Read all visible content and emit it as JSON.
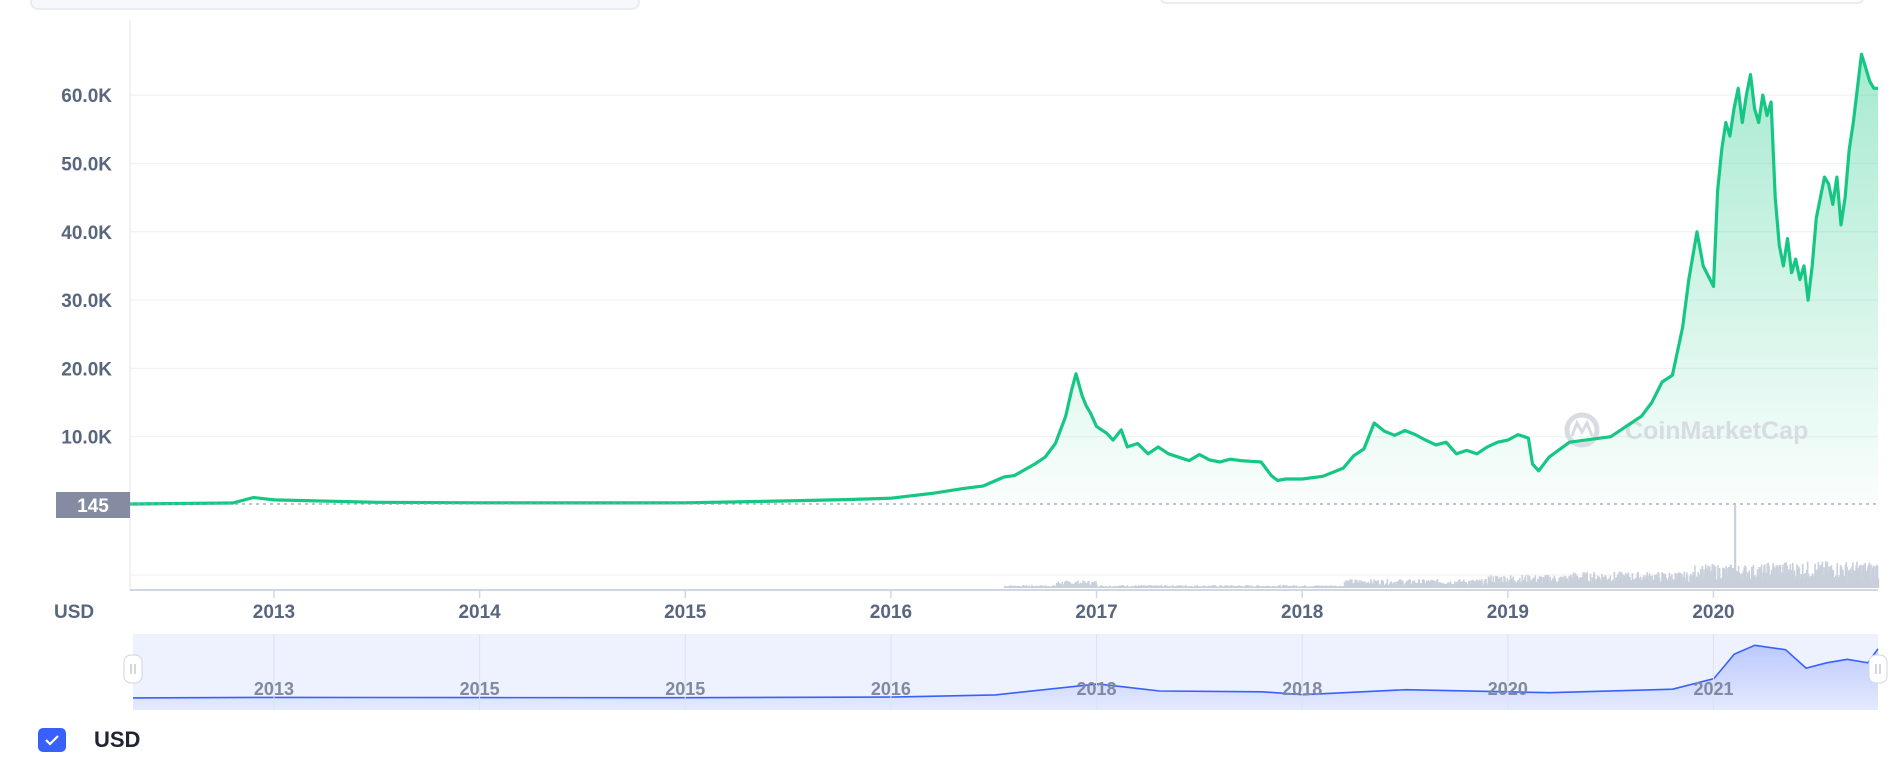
{
  "chart_data": {
    "type": "area",
    "currency_label": "USD",
    "watermark": "CoinMarketCap",
    "reference_value": 145,
    "reference_label": "145",
    "ylim": [
      0,
      71000
    ],
    "yticks": [
      {
        "value": 10000,
        "label": "10.0K"
      },
      {
        "value": 20000,
        "label": "20.0K"
      },
      {
        "value": 30000,
        "label": "30.0K"
      },
      {
        "value": 40000,
        "label": "40.0K"
      },
      {
        "value": 50000,
        "label": "50.0K"
      },
      {
        "value": 60000,
        "label": "60.0K"
      }
    ],
    "xlim": [
      2012.3,
      2020.8
    ],
    "xticks": [
      {
        "value": 2013,
        "label": "2013"
      },
      {
        "value": 2014,
        "label": "2014"
      },
      {
        "value": 2015,
        "label": "2015"
      },
      {
        "value": 2016,
        "label": "2016"
      },
      {
        "value": 2017,
        "label": "2017"
      },
      {
        "value": 2018,
        "label": "2018"
      },
      {
        "value": 2019,
        "label": "2019"
      },
      {
        "value": 2020,
        "label": "2020"
      }
    ],
    "grid": true,
    "line_color": "#16c784",
    "series": [
      {
        "x": [
          2012.3,
          2012.8,
          2012.9,
          2013.0,
          2013.5,
          2014.0,
          2014.5,
          2015.0,
          2015.5,
          2015.8,
          2016.0,
          2016.2,
          2016.35,
          2016.45,
          2016.55,
          2016.6,
          2016.7,
          2016.75,
          2016.8,
          2016.85,
          2016.88,
          2016.9,
          2016.93,
          2016.95,
          2016.97,
          2017.0,
          2017.05,
          2017.08,
          2017.12,
          2017.15,
          2017.2,
          2017.25,
          2017.3,
          2017.35,
          2017.4,
          2017.45,
          2017.5,
          2017.55,
          2017.6,
          2017.65,
          2017.7,
          2017.75,
          2017.8,
          2017.85,
          2017.88,
          2017.92,
          2018.0,
          2018.1,
          2018.2,
          2018.25,
          2018.3,
          2018.35,
          2018.4,
          2018.45,
          2018.5,
          2018.55,
          2018.6,
          2018.65,
          2018.7,
          2018.75,
          2018.8,
          2018.85,
          2018.9,
          2018.95,
          2019.0,
          2019.05,
          2019.1,
          2019.12,
          2019.15,
          2019.2,
          2019.3,
          2019.4,
          2019.5,
          2019.55,
          2019.6,
          2019.65,
          2019.7,
          2019.75,
          2019.8,
          2019.85,
          2019.88,
          2019.92,
          2019.95,
          2020.0,
          2020.02,
          2020.04,
          2020.06,
          2020.08,
          2020.1,
          2020.12,
          2020.14,
          2020.16,
          2020.18,
          2020.2,
          2020.22,
          2020.24,
          2020.26,
          2020.28,
          2020.3,
          2020.32,
          2020.34,
          2020.36,
          2020.38,
          2020.4,
          2020.42,
          2020.44,
          2020.46,
          2020.48,
          2020.5,
          2020.52,
          2020.54,
          2020.56,
          2020.58,
          2020.6,
          2020.62,
          2020.64,
          2020.66,
          2020.68,
          2020.7,
          2020.72,
          2020.74,
          2020.76,
          2020.78,
          2020.8
        ],
        "y": [
          145,
          300,
          1100,
          750,
          400,
          320,
          310,
          320,
          600,
          800,
          1000,
          1700,
          2400,
          2800,
          4100,
          4300,
          6000,
          7000,
          9000,
          13000,
          17000,
          19200,
          16000,
          14500,
          13500,
          11500,
          10500,
          9500,
          11000,
          8500,
          9000,
          7500,
          8500,
          7500,
          7000,
          6500,
          7400,
          6600,
          6300,
          6700,
          6500,
          6400,
          6300,
          4300,
          3600,
          3800,
          3800,
          4200,
          5400,
          7200,
          8200,
          12000,
          10800,
          10200,
          10900,
          10300,
          9500,
          8800,
          9200,
          7500,
          8000,
          7500,
          8500,
          9200,
          9500,
          10300,
          9800,
          6000,
          5000,
          7000,
          9200,
          9600,
          10000,
          11000,
          12000,
          13000,
          15000,
          18000,
          19000,
          26000,
          33000,
          40000,
          35000,
          32000,
          46000,
          52000,
          56000,
          54000,
          58000,
          61000,
          56000,
          60000,
          63000,
          58000,
          56000,
          60000,
          57000,
          59000,
          45000,
          38000,
          35000,
          39000,
          34000,
          36000,
          33000,
          35000,
          30000,
          35000,
          42000,
          45000,
          48000,
          47000,
          44000,
          48000,
          41000,
          45000,
          52000,
          56000,
          61000,
          66000,
          64000,
          62000,
          61000,
          61000
        ]
      }
    ],
    "volume_peak_x": 2020.1,
    "navigator": {
      "labels": [
        "2013",
        "2015",
        "2015",
        "2016",
        "2018",
        "2018",
        "2020",
        "2021"
      ],
      "x": [
        2012.3,
        2013,
        2014,
        2015,
        2016,
        2016.5,
        2017,
        2017.3,
        2017.8,
        2018,
        2018.5,
        2019.2,
        2019.8,
        2020.0,
        2020.1,
        2020.2,
        2020.35,
        2020.45,
        2020.55,
        2020.65,
        2020.75,
        2020.8
      ],
      "y": [
        145,
        700,
        400,
        300,
        1000,
        3500,
        16000,
        8000,
        7000,
        3800,
        9500,
        6000,
        10000,
        22000,
        50000,
        60000,
        55000,
        34000,
        40000,
        44000,
        40000,
        56000
      ]
    }
  },
  "legend": {
    "label": "USD",
    "checked": true
  }
}
